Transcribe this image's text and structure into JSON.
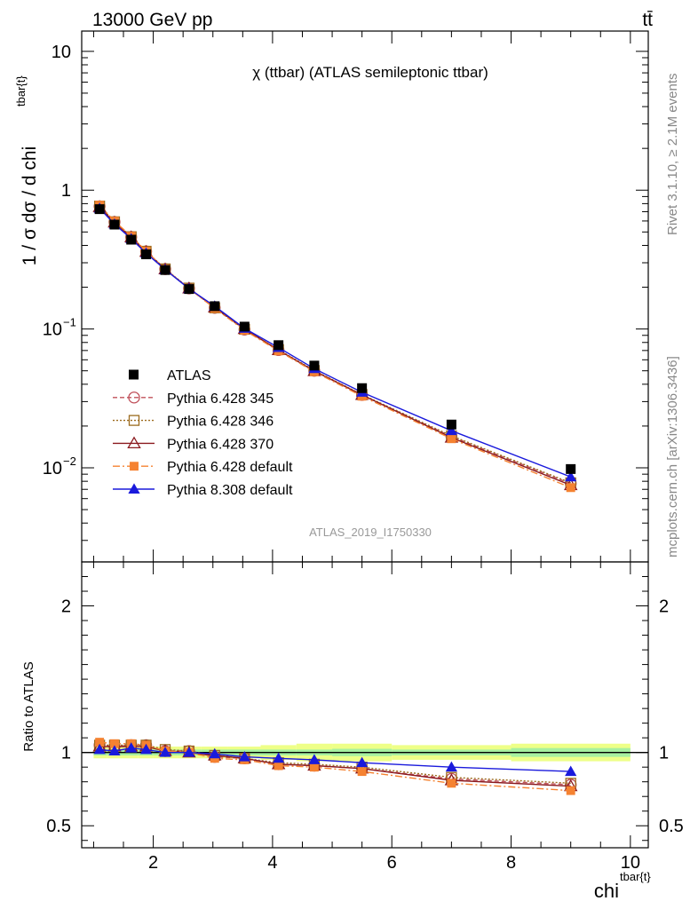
{
  "header": {
    "energy_label": "13000 GeV pp",
    "process_label": "tt̄"
  },
  "side_labels": {
    "rivet": "Rivet 3.1.10, ≥ 2.1M events",
    "mcplots": "mcplots.cern.ch [arXiv:1306.3436]"
  },
  "chart_data": {
    "type": "line",
    "title": "χ (ttbar) (ATLAS semileptonic ttbar)",
    "analysis_id": "ATLAS_2019_I1750330",
    "xlabel": "chi",
    "xlabel_sup": "tbar{t}",
    "ylabel": "1 / σ dσ / d chi",
    "ylabel_sup": "tbar{t}",
    "ratio_ylabel": "Ratio to ATLAS",
    "xlim": [
      0.8,
      10.3
    ],
    "ylim": [
      0.0021,
      14
    ],
    "ylog": true,
    "ratio_ylim": [
      0.35,
      2.3
    ],
    "x_ticks": [
      2,
      4,
      6,
      8,
      10
    ],
    "x_tick_labels": [
      "2",
      "4",
      "6",
      "8",
      "10"
    ],
    "y_tick_labels": [
      {
        "value": 10,
        "base": "10",
        "exp": ""
      },
      {
        "value": 1,
        "base": "1",
        "exp": ""
      },
      {
        "value": 0.1,
        "base": "10",
        "exp": "−1"
      },
      {
        "value": 0.01,
        "base": "10",
        "exp": "−2"
      }
    ],
    "ratio_y_ticks": [
      0.5,
      1,
      2
    ],
    "ratio_y_tick_labels": [
      "0.5",
      "1",
      "2"
    ],
    "legend_position": "middle-left",
    "x": [
      1.1,
      1.35,
      1.63,
      1.88,
      2.2,
      2.6,
      3.03,
      3.53,
      4.1,
      4.7,
      5.5,
      7.0,
      9.0
    ],
    "x_edges": [
      1.0,
      1.22,
      1.5,
      1.75,
      2.0,
      2.4,
      2.8,
      3.25,
      3.8,
      4.4,
      5.0,
      6.0,
      8.0,
      10.0
    ],
    "data": {
      "name": "ATLAS",
      "values": [
        0.73,
        0.565,
        0.44,
        0.345,
        0.266,
        0.194,
        0.146,
        0.104,
        0.0765,
        0.0545,
        0.0375,
        0.0205,
        0.0098
      ],
      "ratio_band_stat": [
        0.02,
        0.02,
        0.02,
        0.02,
        0.02,
        0.02,
        0.02,
        0.02,
        0.02,
        0.02,
        0.025,
        0.02,
        0.03
      ],
      "ratio_band_total": [
        0.04,
        0.04,
        0.04,
        0.04,
        0.04,
        0.04,
        0.04,
        0.04,
        0.05,
        0.06,
        0.06,
        0.05,
        0.06
      ]
    },
    "series": [
      {
        "name": "Pythia 6.428 345",
        "color": "#c0505a",
        "dash": "5,3",
        "marker": "circle-open",
        "values": [
          0.765,
          0.59,
          0.46,
          0.362,
          0.27,
          0.196,
          0.142,
          0.099,
          0.0705,
          0.05,
          0.0335,
          0.0168,
          0.0077
        ],
        "ratio": [
          1.05,
          1.04,
          1.05,
          1.05,
          1.01,
          1.01,
          0.97,
          0.96,
          0.92,
          0.91,
          0.89,
          0.82,
          0.78
        ]
      },
      {
        "name": "Pythia 6.428 346",
        "color": "#9c6b1e",
        "dash": "2,2",
        "marker": "square-open",
        "values": [
          0.768,
          0.592,
          0.462,
          0.363,
          0.271,
          0.197,
          0.142,
          0.0995,
          0.071,
          0.0502,
          0.0337,
          0.017,
          0.0078
        ],
        "ratio": [
          1.05,
          1.05,
          1.05,
          1.05,
          1.02,
          1.01,
          0.98,
          0.96,
          0.93,
          0.92,
          0.9,
          0.83,
          0.79
        ]
      },
      {
        "name": "Pythia 6.428 370",
        "color": "#8b1a1f",
        "dash": "",
        "marker": "triangle-open",
        "values": [
          0.755,
          0.585,
          0.458,
          0.36,
          0.269,
          0.196,
          0.143,
          0.1,
          0.0705,
          0.0498,
          0.0335,
          0.0165,
          0.0075
        ],
        "ratio": [
          1.04,
          1.04,
          1.04,
          1.04,
          1.01,
          1.0,
          0.98,
          0.96,
          0.92,
          0.91,
          0.89,
          0.81,
          0.77
        ]
      },
      {
        "name": "Pythia 6.428 default",
        "color": "#f58231",
        "dash": "8,3,2,3",
        "marker": "square-filled",
        "values": [
          0.78,
          0.598,
          0.466,
          0.364,
          0.27,
          0.195,
          0.141,
          0.098,
          0.0695,
          0.0492,
          0.0328,
          0.0162,
          0.0072
        ],
        "ratio": [
          1.07,
          1.06,
          1.06,
          1.05,
          1.01,
          1.0,
          0.96,
          0.95,
          0.91,
          0.9,
          0.87,
          0.79,
          0.74
        ]
      },
      {
        "name": "Pythia 8.308 default",
        "color": "#1a1adc",
        "dash": "",
        "marker": "triangle-filled",
        "values": [
          0.74,
          0.57,
          0.447,
          0.352,
          0.268,
          0.195,
          0.146,
          0.101,
          0.0735,
          0.0518,
          0.035,
          0.0185,
          0.0086
        ],
        "ratio": [
          1.02,
          1.01,
          1.03,
          1.02,
          1.0,
          1.0,
          0.99,
          0.97,
          0.96,
          0.95,
          0.93,
          0.9,
          0.87
        ]
      }
    ]
  }
}
